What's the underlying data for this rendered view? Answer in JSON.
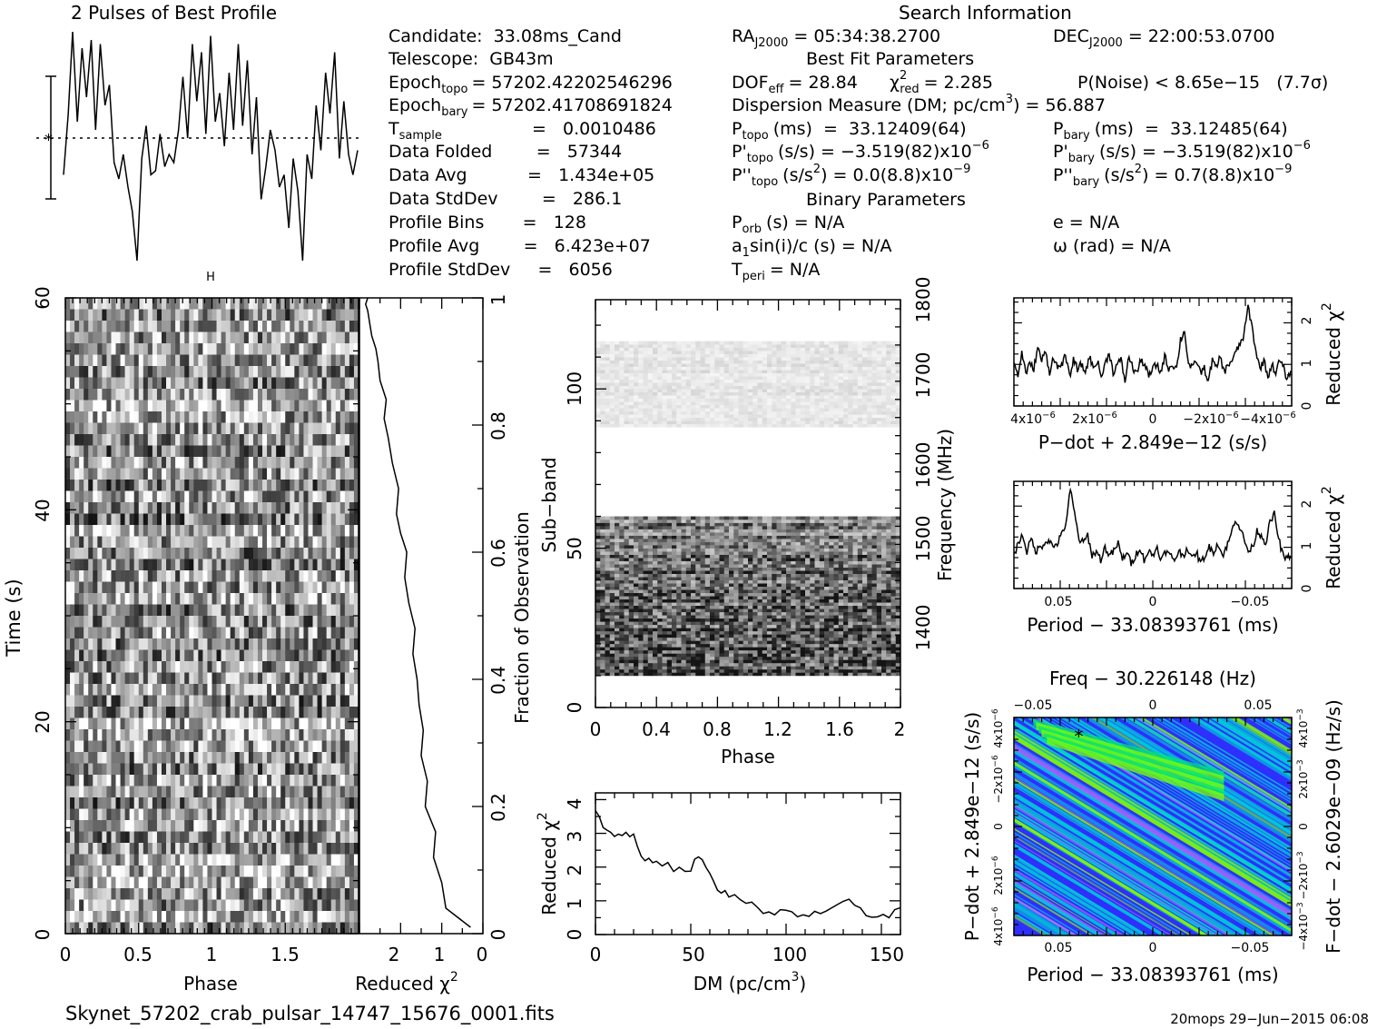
{
  "header": {
    "profile_title": "2 Pulses of Best Profile",
    "search_title": "Search Information",
    "best_fit_title": "Best Fit Parameters",
    "binary_title": "Binary Parameters"
  },
  "candidate_info": {
    "candidate": "Candidate:  33.08ms_Cand",
    "telescope": "Telescope:  GB43m",
    "epoch_topo_label": "Epoch",
    "epoch_topo_sub": "topo",
    "epoch_topo_value": "= 57202.42202546296",
    "epoch_bary_label": "Epoch",
    "epoch_bary_sub": "bary",
    "epoch_bary_value": "= 57202.41708691824",
    "t_sample_label": "T",
    "t_sample_sub": "sample",
    "t_sample_value": "=   0.0010486",
    "data_folded": "Data Folded        =   57344",
    "data_avg": "Data Avg           =   1.434e+05",
    "data_stddev": "Data StdDev        =   286.1",
    "profile_bins": "Profile Bins       =   128",
    "profile_avg": "Profile Avg        =   6.423e+07",
    "profile_stddev": "Profile StdDev     =   6056"
  },
  "search_info": {
    "ra_label": "RA",
    "ra_sub": "J2000",
    "ra_value": "= 05:34:38.2700",
    "dec_label": "DEC",
    "dec_sub": "J2000",
    "dec_value": "= 22:00:53.0700",
    "dof_label": "DOF",
    "dof_sub": "eff",
    "dof_value": "= 28.84",
    "chi_label": "χ",
    "chi_sup": "2",
    "chi_sub": "red",
    "chi_value": "= 2.285",
    "pnoise": "P(Noise) < 8.65e−15   (7.7σ)",
    "dm_line": "Dispersion Measure (DM; pc/cm",
    "dm_sup": "3",
    "dm_value": ") = 56.887",
    "ptopo_label": "P",
    "ptopo_sub": "topo",
    "ptopo_value": "(ms)  =  33.12409(64)",
    "pbary_label": "P",
    "pbary_sub": "bary",
    "pbary_value": "(ms)  =  33.12485(64)",
    "pdtopo_label": "P'",
    "pdtopo_sub": "topo",
    "pdtopo_value": "(s/s) = −3.519(82)x10",
    "pdtopo_exp": "−6",
    "pdbary_label": "P'",
    "pdbary_sub": "bary",
    "pdbary_value": "(s/s) = −3.519(82)x10",
    "pdbary_exp": "−6",
    "pddtopo_label": "P''",
    "pddtopo_sub": "topo",
    "pddtopo_value": "(s/s",
    "pddtopo_sup": "2",
    "pddtopo_value2": ") = 0.0(8.8)x10",
    "pddtopo_exp": "−9",
    "pddbary_label": "P''",
    "pddbary_sub": "bary",
    "pddbary_value": "(s/s",
    "pddbary_sup": "2",
    "pddbary_value2": ") =  0.7(8.8)x10",
    "pddbary_exp": "−9",
    "porb_label": "P",
    "porb_sub": "orb",
    "porb_value": "(s) = N/A",
    "ecc": "e = N/A",
    "a1sini": "a",
    "a1_sub": "1",
    "a1sini_value": "sin(i)/c (s) = N/A",
    "omega": "ω (rad) = N/A",
    "tperi_label": "T",
    "tperi_sub": "peri",
    "tperi_value": "= N/A"
  },
  "footer": {
    "filename": "Skynet_57202_crab_pulsar_14747_15676_0001.fits",
    "stamp": "20mops 29−Jun−2015 06:08"
  },
  "colors": {
    "ink": "#000000",
    "map_low": "#2f2fff",
    "map_mid": "#00c8d8",
    "map_high": "#7fff00"
  },
  "chart_data": [
    {
      "id": "profile",
      "type": "line",
      "title": "2 Pulses of Best Profile",
      "x": [
        0,
        0.016,
        0.031,
        0.047,
        0.063,
        0.078,
        0.094,
        0.109,
        0.125,
        0.141,
        0.156,
        0.172,
        0.188,
        0.203,
        0.219,
        0.234,
        0.25,
        0.266,
        0.281,
        0.297,
        0.313,
        0.328,
        0.344,
        0.359,
        0.375,
        0.391,
        0.406,
        0.422,
        0.438,
        0.453,
        0.469,
        0.484,
        0.5,
        0.516,
        0.531,
        0.547,
        0.563,
        0.578,
        0.594,
        0.609,
        0.625,
        0.641,
        0.656,
        0.672,
        0.688,
        0.703,
        0.719,
        0.734,
        0.75,
        0.766,
        0.781,
        0.797,
        0.813,
        0.828,
        0.844,
        0.859,
        0.875,
        0.891,
        0.906,
        0.922,
        0.938,
        0.953,
        0.969,
        0.984,
        1
      ],
      "values": [
        -0.9,
        0.6,
        2.6,
        0.4,
        2.2,
        1.0,
        2.4,
        0.2,
        2.3,
        0.8,
        1.3,
        -0.6,
        -1.0,
        -0.4,
        -1.2,
        -1.8,
        -3.0,
        -0.5,
        0.3,
        -0.9,
        -0.8,
        0.1,
        -0.7,
        -0.4,
        -0.6,
        0.2,
        1.5,
        0.0,
        2.3,
        0.9,
        2.1,
        0.1,
        2.5,
        0.4,
        1.1,
        -0.2,
        1.6,
        0.2,
        2.3,
        0.3,
        1.9,
        -0.4,
        1.0,
        -1.5,
        -0.7,
        0.2,
        -0.3,
        -1.2,
        -0.9,
        -2.2,
        -0.5,
        -1.3,
        -3.0,
        -0.4,
        -1.0,
        0.8,
        -0.3,
        1.6,
        0.6,
        2.1,
        -0.5,
        0.9,
        -0.4,
        -0.9,
        -0.3
      ],
      "annotations": [
        "*"
      ]
    },
    {
      "id": "time_phase",
      "type": "heatmap",
      "xlabel": "Phase",
      "ylabel": "Time (s)",
      "xticks": [
        "0",
        "0.5",
        "1",
        "1.5"
      ],
      "yticks": [
        "0",
        "20",
        "40",
        "60"
      ],
      "xlim": [
        0,
        2
      ],
      "ylim": [
        0,
        60
      ]
    },
    {
      "id": "time_chi2",
      "type": "line",
      "xlabel": "Reduced χ",
      "xlabel_sup": "2",
      "ylabel_right": "Fraction of Observation",
      "xticks": [
        "2",
        "1",
        "0"
      ],
      "yticks_right": [
        "0",
        "0.2",
        "0.4",
        "0.6",
        "0.8",
        "1"
      ],
      "xlim": [
        3,
        0
      ],
      "ylim": [
        0,
        1
      ],
      "x": [
        0.3,
        0.9,
        1.0,
        1.2,
        1.15,
        1.4,
        1.35,
        1.5,
        1.45,
        1.55,
        1.6,
        1.7,
        1.65,
        1.8,
        1.9,
        1.85,
        2.0,
        2.1,
        2.05,
        2.2,
        2.3,
        2.4,
        2.35,
        2.5,
        2.55,
        2.6,
        2.7,
        2.75,
        2.8,
        2.85,
        2.8
      ],
      "y": [
        0.01,
        0.04,
        0.08,
        0.12,
        0.16,
        0.2,
        0.24,
        0.28,
        0.32,
        0.36,
        0.4,
        0.44,
        0.48,
        0.52,
        0.56,
        0.6,
        0.63,
        0.66,
        0.7,
        0.74,
        0.78,
        0.81,
        0.84,
        0.87,
        0.9,
        0.92,
        0.94,
        0.96,
        0.98,
        0.99,
        1.0
      ]
    },
    {
      "id": "subband_phase",
      "type": "heatmap",
      "xlabel": "Phase",
      "ylabel": "Sub−band",
      "ylabel_right": "Frequency (MHz)",
      "xticks": [
        "0",
        "0.4",
        "0.8",
        "1.2",
        "1.6",
        "2"
      ],
      "yticks": [
        "0",
        "50",
        "100"
      ],
      "yticks_right": [
        "1400",
        "1500",
        "1600",
        "1700",
        "1800"
      ],
      "xlim": [
        0,
        2
      ],
      "ylim": [
        0,
        128
      ],
      "ylim_right": [
        1350,
        1800
      ]
    },
    {
      "id": "dm_chi2",
      "type": "line",
      "xlabel": "DM (pc/cm",
      "xlabel_sup": "3",
      "xlabel_end": ")",
      "ylabel": "Reduced χ",
      "ylabel_sup": "2",
      "xticks": [
        "0",
        "50",
        "100",
        "150"
      ],
      "yticks": [
        "0",
        "1",
        "2",
        "3",
        "4"
      ],
      "xlim": [
        0,
        160
      ],
      "ylim": [
        0,
        4.2
      ],
      "x": [
        0,
        2,
        4,
        6,
        8,
        10,
        12,
        14,
        16,
        18,
        20,
        22,
        24,
        26,
        28,
        30,
        32,
        35,
        38,
        41,
        44,
        47,
        50,
        52,
        54,
        56,
        58,
        60,
        62,
        64,
        66,
        68,
        70,
        73,
        76,
        79,
        82,
        85,
        88,
        91,
        94,
        97,
        100,
        103,
        106,
        109,
        112,
        115,
        118,
        121,
        124,
        127,
        130,
        133,
        136,
        139,
        142,
        145,
        148,
        151,
        154,
        157,
        160
      ],
      "values": [
        3.7,
        3.5,
        3.2,
        3.1,
        3.0,
        2.9,
        3.0,
        2.95,
        3.0,
        2.9,
        3.0,
        2.6,
        2.3,
        2.2,
        2.25,
        2.1,
        2.2,
        2.0,
        2.1,
        1.9,
        2.0,
        1.85,
        1.9,
        2.2,
        2.3,
        2.25,
        2.0,
        1.8,
        1.6,
        1.3,
        1.2,
        1.3,
        1.1,
        1.15,
        1.0,
        0.95,
        1.0,
        0.8,
        0.6,
        0.7,
        0.6,
        0.75,
        0.7,
        0.65,
        0.5,
        0.6,
        0.55,
        0.7,
        0.65,
        0.7,
        0.8,
        0.9,
        1.0,
        1.05,
        0.9,
        0.8,
        0.6,
        0.5,
        0.55,
        0.6,
        0.5,
        0.7,
        0.8
      ]
    },
    {
      "id": "pdot_chi2",
      "type": "line",
      "xlabel": "P−dot + 2.849e−12 (s/s)",
      "ylabel_right": "Reduced χ",
      "ylabel_right_sup": "2",
      "xticks": [
        "4x10",
        "2x10",
        "0",
        "−2x10",
        "−4x10"
      ],
      "xtick_exp": "−6",
      "yticks_right": [
        "0",
        "1",
        "2"
      ],
      "xlim": [
        5e-06,
        -5e-06
      ],
      "ylim": [
        0,
        2.6
      ],
      "values": [
        1.1,
        0.7,
        1.3,
        0.8,
        1.0,
        0.9,
        1.4,
        1.1,
        1.3,
        0.8,
        1.2,
        0.9,
        1.0,
        1.2,
        0.7,
        1.1,
        0.9,
        1.0,
        0.8,
        1.2,
        0.9,
        1.1,
        0.7,
        1.0,
        1.3,
        0.8,
        1.0,
        1.1,
        0.6,
        1.2,
        0.9,
        0.8,
        1.1,
        1.0,
        0.7,
        0.9,
        1.0,
        0.8,
        1.2,
        0.9,
        1.0,
        0.9,
        1.6,
        1.8,
        1.0,
        0.9,
        1.1,
        0.8,
        0.9,
        0.6,
        1.1,
        0.9,
        1.2,
        0.8,
        1.0,
        1.1,
        1.3,
        1.5,
        1.7,
        2.4,
        1.9,
        1.3,
        0.9,
        1.1,
        0.7,
        1.0,
        0.8,
        1.1,
        0.9,
        0.6,
        1.0
      ]
    },
    {
      "id": "period_chi2",
      "type": "line",
      "xlabel": "Period − 33.08393761 (ms)",
      "ylabel_right": "Reduced χ",
      "ylabel_right_sup": "2",
      "xticks": [
        "0.05",
        "0",
        "−0.05"
      ],
      "yticks_right": [
        "0",
        "1",
        "2"
      ],
      "xlim": [
        0.075,
        -0.075
      ],
      "ylim": [
        0,
        2.6
      ],
      "values": [
        0.8,
        1.1,
        1.3,
        0.9,
        1.2,
        0.9,
        1.0,
        1.1,
        1.2,
        1.0,
        1.1,
        1.3,
        1.6,
        2.4,
        1.8,
        1.2,
        1.1,
        1.3,
        0.8,
        0.9,
        0.7,
        1.0,
        0.8,
        0.9,
        1.1,
        0.7,
        0.9,
        0.6,
        0.8,
        1.0,
        0.7,
        0.9,
        0.8,
        1.0,
        0.7,
        0.9,
        0.8,
        0.7,
        0.9,
        0.8,
        1.0,
        0.7,
        0.9,
        0.6,
        0.8,
        1.0,
        0.9,
        1.1,
        0.8,
        1.0,
        1.3,
        1.7,
        1.5,
        1.2,
        0.9,
        1.0,
        1.4,
        1.3,
        1.1,
        1.6,
        1.8,
        1.2,
        0.8,
        0.7,
        0.9
      ]
    },
    {
      "id": "pdot_period_map",
      "type": "heatmap",
      "title": "Freq − 30.226148 (Hz)",
      "xlabel": "Period − 33.08393761 (ms)",
      "ylabel": "P−dot + 2.849e−12 (s/s)",
      "ylabel_right": "F−dot − 2.6029e−09 (Hz/s)",
      "xticks": [
        "0.05",
        "0",
        "−0.05"
      ],
      "xticks_top": [
        "−0.05",
        "0",
        "0.05"
      ],
      "yticks": [
        "4x10",
        "2x10",
        "0",
        "−2x10",
        "4x10"
      ],
      "ytick_exp": "−6",
      "yticks_right": [
        "−4x10",
        "−2x10",
        "0",
        "2x10",
        "4x10"
      ],
      "ytick_right_exp": "−3",
      "xlim": [
        0.075,
        -0.075
      ],
      "best": {
        "period": 0.04,
        "pdot": 4.2e-06
      }
    }
  ]
}
